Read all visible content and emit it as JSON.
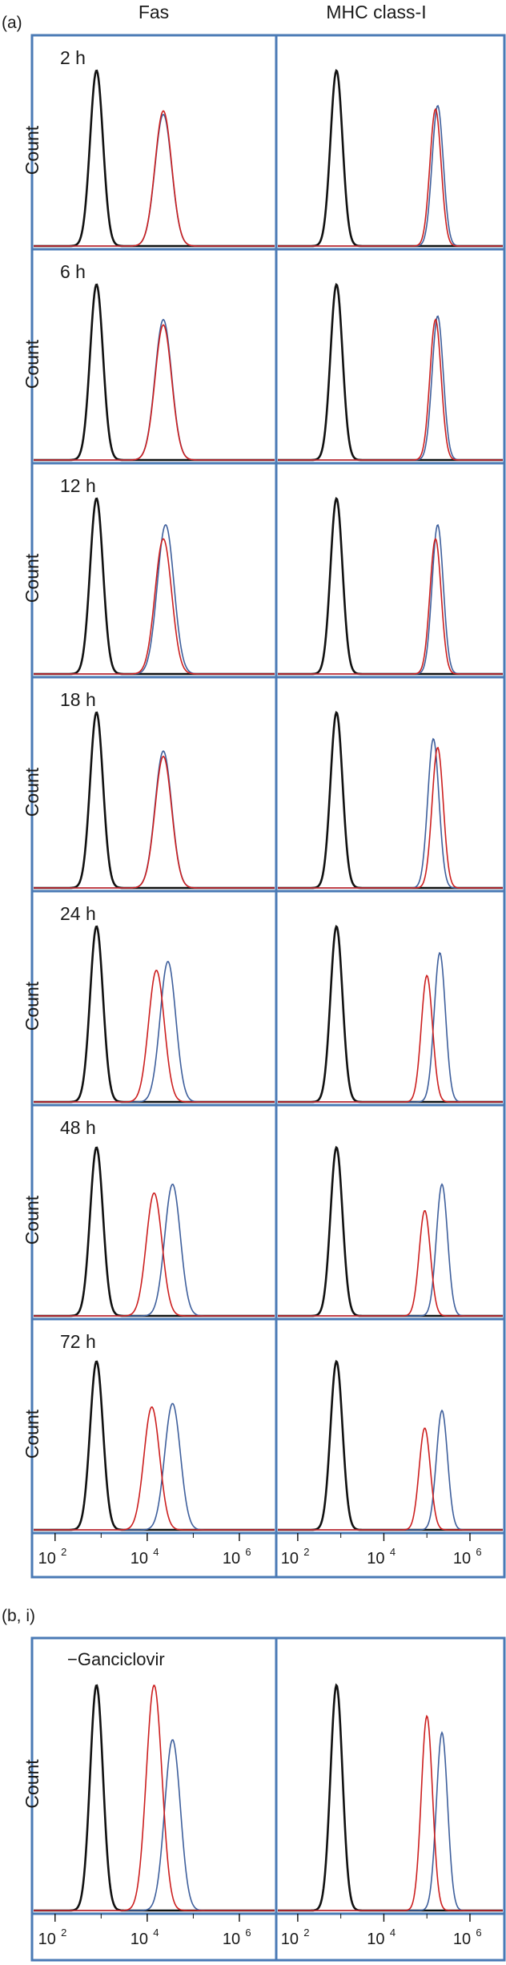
{
  "colors": {
    "frame": "#4a7ab5",
    "control": "#111111",
    "red": "#cc1f1f",
    "blue": "#3e5f9c"
  },
  "chart_data": [
    {
      "type": "area",
      "panel": "(a)",
      "columns": [
        "Fas",
        "MHC class-I"
      ],
      "ylabel": "Count",
      "x_axis": {
        "scale": "log",
        "ticks": [
          "10",
          "2",
          "10",
          "4",
          "10",
          "6"
        ]
      },
      "rows": [
        {
          "label": "2 h",
          "fas": {
            "black": [
              2.9,
              1.0,
              0.14
            ],
            "red": [
              4.35,
              0.77,
              0.18
            ],
            "blue": [
              4.35,
              0.75,
              0.18
            ]
          },
          "mhc": {
            "black": [
              2.9,
              1.0,
              0.14
            ],
            "red": [
              5.2,
              0.78,
              0.13
            ],
            "blue": [
              5.25,
              0.8,
              0.13
            ]
          }
        },
        {
          "label": "6 h",
          "fas": {
            "black": [
              2.9,
              1.0,
              0.14
            ],
            "red": [
              4.35,
              0.77,
              0.18
            ],
            "blue": [
              4.35,
              0.8,
              0.18
            ]
          },
          "mhc": {
            "black": [
              2.9,
              1.0,
              0.14
            ],
            "red": [
              5.2,
              0.8,
              0.13
            ],
            "blue": [
              5.25,
              0.82,
              0.13
            ]
          }
        },
        {
          "label": "12 h",
          "fas": {
            "black": [
              2.9,
              1.0,
              0.14
            ],
            "red": [
              4.35,
              0.77,
              0.18
            ],
            "blue": [
              4.4,
              0.85,
              0.18
            ]
          },
          "mhc": {
            "black": [
              2.9,
              1.0,
              0.14
            ],
            "red": [
              5.2,
              0.77,
              0.13
            ],
            "blue": [
              5.25,
              0.85,
              0.13
            ]
          }
        },
        {
          "label": "18 h",
          "fas": {
            "black": [
              2.9,
              1.0,
              0.14
            ],
            "red": [
              4.35,
              0.75,
              0.18
            ],
            "blue": [
              4.35,
              0.78,
              0.18
            ]
          },
          "mhc": {
            "black": [
              2.9,
              1.0,
              0.14
            ],
            "red": [
              5.25,
              0.8,
              0.13
            ],
            "blue": [
              5.15,
              0.85,
              0.13
            ]
          }
        },
        {
          "label": "24 h",
          "fas": {
            "black": [
              2.9,
              1.0,
              0.14
            ],
            "red": [
              4.2,
              0.75,
              0.17
            ],
            "blue": [
              4.45,
              0.8,
              0.17
            ]
          },
          "mhc": {
            "black": [
              2.9,
              1.0,
              0.14
            ],
            "red": [
              5.0,
              0.72,
              0.13
            ],
            "blue": [
              5.3,
              0.85,
              0.13
            ]
          }
        },
        {
          "label": "48 h",
          "fas": {
            "black": [
              2.9,
              0.96,
              0.14
            ],
            "red": [
              4.15,
              0.7,
              0.17
            ],
            "blue": [
              4.55,
              0.75,
              0.17
            ]
          },
          "mhc": {
            "black": [
              2.9,
              0.96,
              0.14
            ],
            "red": [
              4.95,
              0.6,
              0.13
            ],
            "blue": [
              5.35,
              0.75,
              0.13
            ]
          }
        },
        {
          "label": "72 h",
          "fas": {
            "black": [
              2.9,
              0.96,
              0.14
            ],
            "red": [
              4.1,
              0.7,
              0.17
            ],
            "blue": [
              4.55,
              0.72,
              0.17
            ]
          },
          "mhc": {
            "black": [
              2.9,
              0.96,
              0.14
            ],
            "red": [
              4.95,
              0.58,
              0.13
            ],
            "blue": [
              5.35,
              0.68,
              0.13
            ]
          }
        }
      ]
    },
    {
      "type": "area",
      "panel": "(b, i)",
      "annotation": "−Ganciclovir",
      "ylabel": "Count",
      "x_axis": {
        "scale": "log",
        "ticks": [
          "10",
          "2",
          "10",
          "4",
          "10",
          "6"
        ]
      },
      "rows": [
        {
          "label": "",
          "fas": {
            "black": [
              2.9,
              0.95,
              0.14
            ],
            "red": [
              4.15,
              0.95,
              0.17
            ],
            "blue": [
              4.55,
              0.72,
              0.17
            ]
          },
          "mhc": {
            "black": [
              2.9,
              0.95,
              0.14
            ],
            "red": [
              5.0,
              0.82,
              0.13
            ],
            "blue": [
              5.35,
              0.75,
              0.13
            ]
          }
        }
      ]
    }
  ]
}
